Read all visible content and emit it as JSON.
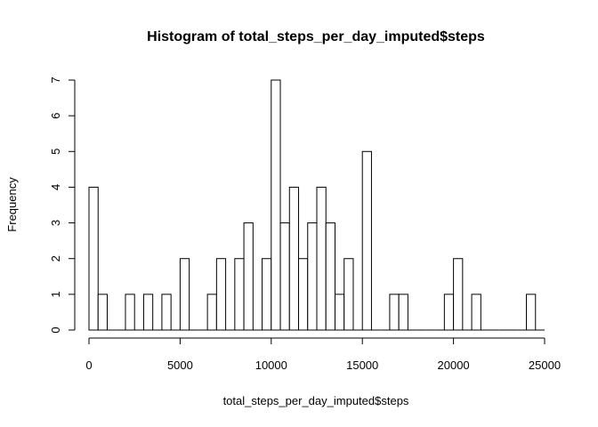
{
  "chart_data": {
    "type": "bar",
    "title": "Histogram of total_steps_per_day_imputed$steps",
    "xlabel": "total_steps_per_day_imputed$steps",
    "ylabel": "Frequency",
    "bin_width": 500,
    "x_range": [
      0,
      25000
    ],
    "ylim": [
      0,
      7
    ],
    "x_ticks": [
      0,
      5000,
      10000,
      15000,
      20000,
      25000
    ],
    "y_ticks": [
      0,
      1,
      2,
      3,
      4,
      5,
      6,
      7
    ],
    "bin_starts": [
      0,
      500,
      1000,
      1500,
      2000,
      2500,
      3000,
      3500,
      4000,
      4500,
      5000,
      5500,
      6000,
      6500,
      7000,
      7500,
      8000,
      8500,
      9000,
      9500,
      10000,
      10500,
      11000,
      11500,
      12000,
      12500,
      13000,
      13500,
      14000,
      14500,
      15000,
      15500,
      16000,
      16500,
      17000,
      17500,
      18000,
      18500,
      19000,
      19500,
      20000,
      20500,
      21000,
      21500,
      22000,
      22500,
      23000,
      23500,
      24000,
      24500
    ],
    "values": [
      4,
      1,
      0,
      0,
      1,
      0,
      1,
      0,
      1,
      0,
      2,
      0,
      0,
      1,
      2,
      0,
      2,
      3,
      0,
      2,
      7,
      3,
      4,
      2,
      3,
      4,
      3,
      1,
      2,
      0,
      5,
      0,
      0,
      1,
      1,
      0,
      0,
      0,
      0,
      1,
      2,
      0,
      1,
      0,
      0,
      0,
      0,
      0,
      1,
      0
    ],
    "grid": false,
    "legend": "none",
    "bar_fill": "#ffffff",
    "bar_stroke": "#000000"
  }
}
